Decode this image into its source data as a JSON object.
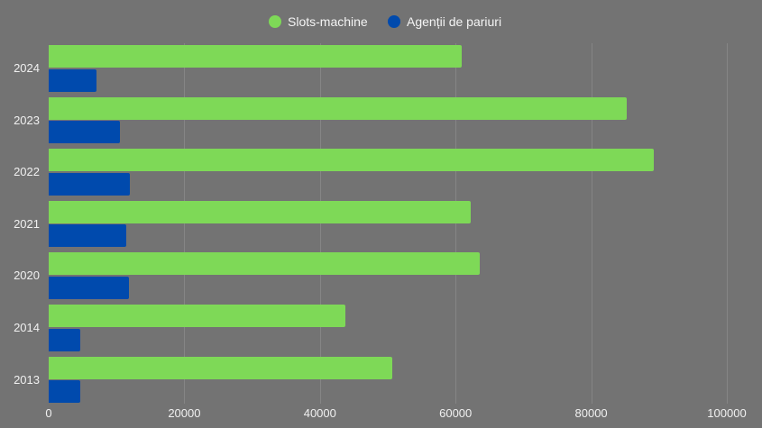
{
  "chart_data": {
    "type": "bar",
    "orientation": "horizontal",
    "title": "",
    "categories": [
      "2024",
      "2023",
      "2022",
      "2021",
      "2020",
      "2014",
      "2013"
    ],
    "series": [
      {
        "name": "Slots-machine",
        "color": "#7ed957",
        "values": [
          60900,
          85300,
          89200,
          62300,
          63500,
          43700,
          50600
        ]
      },
      {
        "name": "Agenții de pariuri",
        "color": "#004aad",
        "values": [
          7000,
          10500,
          12000,
          11400,
          11800,
          4700,
          4600
        ]
      }
    ],
    "xlabel": "",
    "ylabel": "",
    "xlim": [
      0,
      100000
    ],
    "x_ticks": [
      "0",
      "20000",
      "40000",
      "60000",
      "80000",
      "100000"
    ],
    "grid": true,
    "legend_position": "top"
  },
  "legend": {
    "items": [
      {
        "label": "Slots-machine",
        "color": "#7ed957"
      },
      {
        "label": "Agenții de pariuri",
        "color": "#004aad"
      }
    ]
  },
  "background_color": "#737373"
}
